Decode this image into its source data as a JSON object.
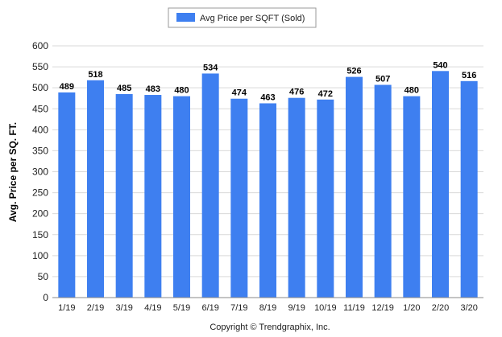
{
  "chart_data": {
    "type": "bar",
    "categories": [
      "1/19",
      "2/19",
      "3/19",
      "4/19",
      "5/19",
      "6/19",
      "7/19",
      "8/19",
      "9/19",
      "10/19",
      "11/19",
      "12/19",
      "1/20",
      "2/20",
      "3/20"
    ],
    "series": [
      {
        "name": "Avg Price per SQFT (Sold)",
        "values": [
          489,
          518,
          485,
          483,
          480,
          534,
          474,
          463,
          476,
          472,
          526,
          507,
          480,
          540,
          516
        ]
      }
    ],
    "xlabel": "",
    "ylabel": "Avg. Price per SQ. FT.",
    "ylim": [
      0,
      600
    ],
    "yticks": [
      0,
      50,
      100,
      150,
      200,
      250,
      300,
      350,
      400,
      450,
      500,
      550,
      600
    ],
    "grid": true,
    "legend_position": "top-center",
    "bar_color": "#3e7ff0",
    "footer": "Copyright © Trendgraphix, Inc."
  }
}
